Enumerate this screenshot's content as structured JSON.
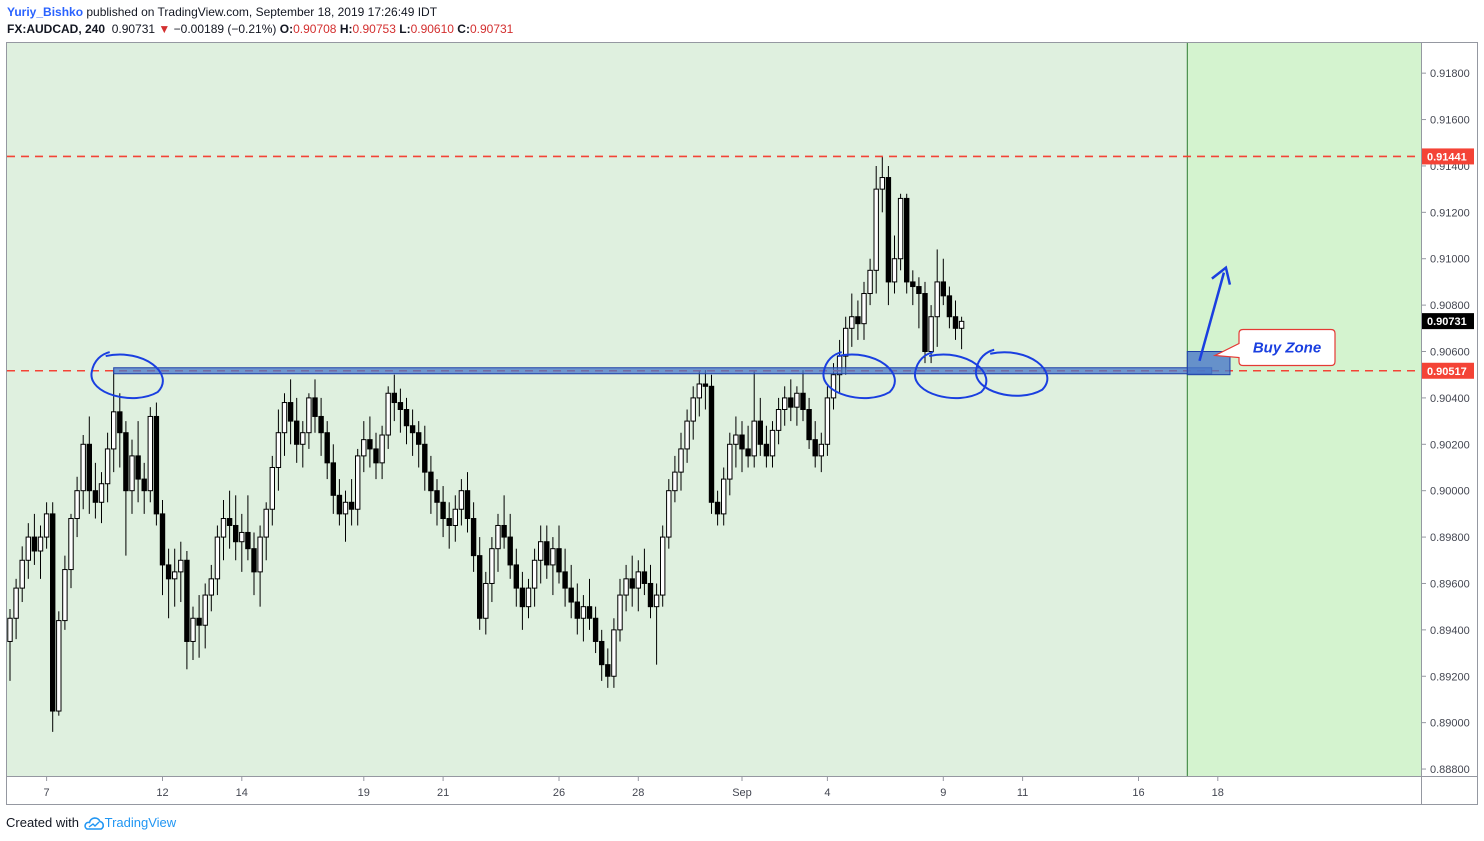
{
  "header": {
    "author": "Yuriy_Bishko",
    "published": " published on TradingView.com, September 18, 2019 17:26:49 IDT",
    "symbol": "FX:AUDCAD, 240",
    "last": "0.90731",
    "change_arrow": "▼",
    "change": "−0.00189 (−0.21%)",
    "o_label": "O:",
    "o_value": "0.90708",
    "h_label": "H:",
    "h_value": "0.90753",
    "l_label": "L:",
    "l_value": "0.90610",
    "c_label": "C:",
    "c_value": "0.90731"
  },
  "footer": {
    "created_with": "Created with",
    "brand": "TradingView",
    "logo_icon": "tradingview-cloud-icon"
  },
  "colors": {
    "background_zone": "#dff0df",
    "future_zone": "#d4f3cf",
    "resistance_line": "#f44336",
    "support_band": "#4a78c8",
    "annotation": "#1a3fe0",
    "candle": "#000000",
    "label_bg_red": "#f44336",
    "label_bg_black": "#000000"
  },
  "chart_data": {
    "type": "candlestick",
    "symbol": "FX:AUDCAD",
    "timeframe": "240",
    "ylim": [
      0.8877,
      0.9193
    ],
    "y_ticks": [
      "0.91800",
      "0.91600",
      "0.91400",
      "0.91200",
      "0.91000",
      "0.90800",
      "0.90600",
      "0.90400",
      "0.90200",
      "0.90000",
      "0.89800",
      "0.89600",
      "0.89400",
      "0.89200",
      "0.89000",
      "0.88800"
    ],
    "x_ticks": [
      "7",
      "12",
      "14",
      "19",
      "21",
      "26",
      "28",
      "Sep",
      "4",
      "9",
      "11",
      "16",
      "18"
    ],
    "x_tick_bar_index": [
      6,
      25,
      38,
      58,
      71,
      90,
      103,
      120,
      134,
      153,
      166,
      185,
      198
    ],
    "grid": false,
    "vertical_marker_bar_index": 193,
    "levels": [
      {
        "label": "0.91441",
        "value": 0.91441,
        "style": "dashed",
        "color": "#f44336"
      },
      {
        "label": "0.90517",
        "value": 0.90517,
        "style": "dashed",
        "color": "#f44336"
      }
    ],
    "current_price_label": "0.90731",
    "support_zone": {
      "value": 0.90517,
      "from_bar": 17,
      "to_bar": 197
    },
    "buy_zone_box": {
      "from_bar": 193,
      "to_bar": 200,
      "low": 0.905,
      "high": 0.906
    },
    "callout": "Buy Zone",
    "arrow": {
      "from_bar": 195,
      "from_value": 0.9056,
      "to_bar": 199,
      "to_value": 0.9094
    },
    "circled_touches": [
      {
        "bar": 17,
        "value": 0.9052
      },
      {
        "bar": 137,
        "value": 0.9052
      },
      {
        "bar": 152,
        "value": 0.9052
      },
      {
        "bar": 162,
        "value": 0.9053
      }
    ],
    "ohlc": [
      [
        0.8935,
        0.8949,
        0.8918,
        0.8945
      ],
      [
        0.8945,
        0.8962,
        0.8936,
        0.8958
      ],
      [
        0.8958,
        0.8976,
        0.8952,
        0.897
      ],
      [
        0.897,
        0.8986,
        0.8962,
        0.898
      ],
      [
        0.898,
        0.899,
        0.8968,
        0.8974
      ],
      [
        0.8974,
        0.8985,
        0.8962,
        0.898
      ],
      [
        0.898,
        0.8995,
        0.8975,
        0.899
      ],
      [
        0.899,
        0.8995,
        0.8896,
        0.8905
      ],
      [
        0.8905,
        0.8948,
        0.8903,
        0.8944
      ],
      [
        0.8944,
        0.8972,
        0.894,
        0.8966
      ],
      [
        0.8966,
        0.899,
        0.8958,
        0.8988
      ],
      [
        0.8988,
        0.9006,
        0.898,
        0.9
      ],
      [
        0.9,
        0.9024,
        0.8992,
        0.902
      ],
      [
        0.902,
        0.9032,
        0.899,
        0.9
      ],
      [
        0.9,
        0.9012,
        0.8988,
        0.8995
      ],
      [
        0.8995,
        0.9008,
        0.8986,
        0.9003
      ],
      [
        0.9003,
        0.9025,
        0.8995,
        0.9018
      ],
      [
        0.9018,
        0.9052,
        0.9008,
        0.9034
      ],
      [
        0.9034,
        0.9042,
        0.901,
        0.9025
      ],
      [
        0.9025,
        0.903,
        0.8972,
        0.9
      ],
      [
        0.9,
        0.9022,
        0.899,
        0.9015
      ],
      [
        0.9015,
        0.903,
        0.8995,
        0.9005
      ],
      [
        0.9005,
        0.9012,
        0.899,
        0.9
      ],
      [
        0.9,
        0.9036,
        0.8995,
        0.9032
      ],
      [
        0.9032,
        0.9038,
        0.8985,
        0.899
      ],
      [
        0.899,
        0.8996,
        0.8955,
        0.8968
      ],
      [
        0.8968,
        0.8975,
        0.8945,
        0.8962
      ],
      [
        0.8962,
        0.8975,
        0.895,
        0.8965
      ],
      [
        0.8965,
        0.8978,
        0.8952,
        0.897
      ],
      [
        0.897,
        0.8974,
        0.8923,
        0.8935
      ],
      [
        0.8935,
        0.895,
        0.8927,
        0.8945
      ],
      [
        0.8945,
        0.8955,
        0.8928,
        0.8942
      ],
      [
        0.8942,
        0.896,
        0.8932,
        0.8955
      ],
      [
        0.8955,
        0.8968,
        0.8948,
        0.8962
      ],
      [
        0.8962,
        0.8985,
        0.8955,
        0.898
      ],
      [
        0.898,
        0.8996,
        0.897,
        0.8988
      ],
      [
        0.8988,
        0.9,
        0.8975,
        0.8985
      ],
      [
        0.8985,
        0.8998,
        0.897,
        0.8978
      ],
      [
        0.8978,
        0.899,
        0.8965,
        0.8982
      ],
      [
        0.8982,
        0.8998,
        0.897,
        0.8975
      ],
      [
        0.8975,
        0.8982,
        0.8955,
        0.8965
      ],
      [
        0.8965,
        0.8985,
        0.895,
        0.898
      ],
      [
        0.898,
        0.8995,
        0.897,
        0.8992
      ],
      [
        0.8992,
        0.9015,
        0.8985,
        0.901
      ],
      [
        0.901,
        0.9035,
        0.9,
        0.9025
      ],
      [
        0.9025,
        0.9042,
        0.9015,
        0.9038
      ],
      [
        0.9038,
        0.9048,
        0.902,
        0.903
      ],
      [
        0.903,
        0.904,
        0.9012,
        0.902
      ],
      [
        0.902,
        0.903,
        0.901,
        0.9025
      ],
      [
        0.9025,
        0.9042,
        0.9018,
        0.904
      ],
      [
        0.904,
        0.9048,
        0.9025,
        0.9032
      ],
      [
        0.9032,
        0.904,
        0.9015,
        0.9025
      ],
      [
        0.9025,
        0.903,
        0.9005,
        0.9012
      ],
      [
        0.9012,
        0.902,
        0.899,
        0.8998
      ],
      [
        0.8998,
        0.9005,
        0.8985,
        0.899
      ],
      [
        0.899,
        0.9,
        0.8978,
        0.8995
      ],
      [
        0.8995,
        0.9005,
        0.8985,
        0.8992
      ],
      [
        0.8992,
        0.9018,
        0.8985,
        0.9015
      ],
      [
        0.9015,
        0.903,
        0.9008,
        0.9022
      ],
      [
        0.9022,
        0.9032,
        0.901,
        0.9018
      ],
      [
        0.9018,
        0.9025,
        0.9005,
        0.9012
      ],
      [
        0.9012,
        0.9028,
        0.9005,
        0.9024
      ],
      [
        0.9024,
        0.9045,
        0.9018,
        0.9042
      ],
      [
        0.9042,
        0.905,
        0.903,
        0.9038
      ],
      [
        0.9038,
        0.9044,
        0.9025,
        0.9035
      ],
      [
        0.9035,
        0.904,
        0.902,
        0.9028
      ],
      [
        0.9028,
        0.9035,
        0.9015,
        0.9025
      ],
      [
        0.9025,
        0.903,
        0.901,
        0.902
      ],
      [
        0.902,
        0.9028,
        0.9,
        0.9008
      ],
      [
        0.9008,
        0.9015,
        0.899,
        0.9
      ],
      [
        0.9,
        0.9005,
        0.8985,
        0.8995
      ],
      [
        0.8995,
        0.9002,
        0.898,
        0.8988
      ],
      [
        0.8988,
        0.8995,
        0.8975,
        0.8985
      ],
      [
        0.8985,
        0.8998,
        0.8978,
        0.8992
      ],
      [
        0.8992,
        0.9005,
        0.8985,
        0.9
      ],
      [
        0.9,
        0.9008,
        0.8982,
        0.8988
      ],
      [
        0.8988,
        0.8995,
        0.8965,
        0.8972
      ],
      [
        0.8972,
        0.898,
        0.894,
        0.8945
      ],
      [
        0.8945,
        0.8965,
        0.8938,
        0.896
      ],
      [
        0.896,
        0.898,
        0.8952,
        0.8975
      ],
      [
        0.8975,
        0.899,
        0.8965,
        0.8985
      ],
      [
        0.8985,
        0.8998,
        0.8975,
        0.898
      ],
      [
        0.898,
        0.899,
        0.8962,
        0.8968
      ],
      [
        0.8968,
        0.8975,
        0.895,
        0.8958
      ],
      [
        0.8958,
        0.8965,
        0.894,
        0.895
      ],
      [
        0.895,
        0.8962,
        0.8945,
        0.8958
      ],
      [
        0.8958,
        0.8975,
        0.895,
        0.897
      ],
      [
        0.897,
        0.8985,
        0.896,
        0.8978
      ],
      [
        0.8978,
        0.8985,
        0.8962,
        0.8968
      ],
      [
        0.8968,
        0.898,
        0.8955,
        0.8975
      ],
      [
        0.8975,
        0.8985,
        0.896,
        0.8965
      ],
      [
        0.8965,
        0.8975,
        0.895,
        0.8958
      ],
      [
        0.8958,
        0.8968,
        0.8945,
        0.8952
      ],
      [
        0.8952,
        0.896,
        0.8938,
        0.8945
      ],
      [
        0.8945,
        0.8955,
        0.8935,
        0.895
      ],
      [
        0.895,
        0.8962,
        0.894,
        0.8945
      ],
      [
        0.8945,
        0.895,
        0.893,
        0.8935
      ],
      [
        0.8935,
        0.894,
        0.8918,
        0.8925
      ],
      [
        0.8925,
        0.8932,
        0.8915,
        0.892
      ],
      [
        0.892,
        0.8945,
        0.8915,
        0.894
      ],
      [
        0.894,
        0.8962,
        0.8935,
        0.8955
      ],
      [
        0.8955,
        0.8968,
        0.8948,
        0.8962
      ],
      [
        0.8962,
        0.8972,
        0.895,
        0.8958
      ],
      [
        0.8958,
        0.897,
        0.8948,
        0.8965
      ],
      [
        0.8965,
        0.8975,
        0.8955,
        0.896
      ],
      [
        0.896,
        0.8968,
        0.8945,
        0.895
      ],
      [
        0.895,
        0.896,
        0.8925,
        0.8955
      ],
      [
        0.8955,
        0.8985,
        0.895,
        0.898
      ],
      [
        0.898,
        0.9005,
        0.8975,
        0.9
      ],
      [
        0.9,
        0.9015,
        0.8995,
        0.9008
      ],
      [
        0.9008,
        0.9025,
        0.9,
        0.9018
      ],
      [
        0.9018,
        0.9035,
        0.9012,
        0.903
      ],
      [
        0.903,
        0.9045,
        0.9022,
        0.904
      ],
      [
        0.904,
        0.9052,
        0.9032,
        0.9046
      ],
      [
        0.9046,
        0.9052,
        0.9035,
        0.9045
      ],
      [
        0.9045,
        0.905,
        0.899,
        0.8995
      ],
      [
        0.8995,
        0.9,
        0.8985,
        0.899
      ],
      [
        0.899,
        0.901,
        0.8985,
        0.9005
      ],
      [
        0.9005,
        0.9025,
        0.8998,
        0.902
      ],
      [
        0.902,
        0.9032,
        0.901,
        0.9024
      ],
      [
        0.9024,
        0.903,
        0.9008,
        0.9018
      ],
      [
        0.9018,
        0.9028,
        0.901,
        0.9015
      ],
      [
        0.9015,
        0.9052,
        0.901,
        0.903
      ],
      [
        0.903,
        0.904,
        0.9015,
        0.902
      ],
      [
        0.902,
        0.9028,
        0.901,
        0.9015
      ],
      [
        0.9015,
        0.903,
        0.901,
        0.9026
      ],
      [
        0.9026,
        0.904,
        0.902,
        0.9035
      ],
      [
        0.9035,
        0.9045,
        0.9028,
        0.904
      ],
      [
        0.904,
        0.9048,
        0.903,
        0.9036
      ],
      [
        0.9036,
        0.9045,
        0.9028,
        0.9042
      ],
      [
        0.9042,
        0.9052,
        0.903,
        0.9035
      ],
      [
        0.9035,
        0.904,
        0.9018,
        0.9022
      ],
      [
        0.9022,
        0.903,
        0.901,
        0.9015
      ],
      [
        0.9015,
        0.9025,
        0.9008,
        0.902
      ],
      [
        0.902,
        0.9045,
        0.9015,
        0.904
      ],
      [
        0.904,
        0.9055,
        0.9035,
        0.905
      ],
      [
        0.905,
        0.9065,
        0.9042,
        0.9058
      ],
      [
        0.9058,
        0.9075,
        0.905,
        0.907
      ],
      [
        0.907,
        0.9085,
        0.9062,
        0.9075
      ],
      [
        0.9075,
        0.9082,
        0.9065,
        0.9072
      ],
      [
        0.9072,
        0.909,
        0.9065,
        0.9085
      ],
      [
        0.9085,
        0.91,
        0.908,
        0.9095
      ],
      [
        0.9095,
        0.914,
        0.9085,
        0.913
      ],
      [
        0.913,
        0.9144,
        0.912,
        0.9135
      ],
      [
        0.9135,
        0.914,
        0.908,
        0.909
      ],
      [
        0.909,
        0.911,
        0.9085,
        0.91
      ],
      [
        0.91,
        0.9128,
        0.9095,
        0.9126
      ],
      [
        0.9126,
        0.9128,
        0.9085,
        0.909
      ],
      [
        0.909,
        0.9095,
        0.908,
        0.9088
      ],
      [
        0.9088,
        0.9092,
        0.907,
        0.9085
      ],
      [
        0.9085,
        0.909,
        0.9055,
        0.906
      ],
      [
        0.906,
        0.908,
        0.9055,
        0.9075
      ],
      [
        0.9075,
        0.9104,
        0.9062,
        0.909
      ],
      [
        0.909,
        0.91,
        0.908,
        0.9084
      ],
      [
        0.9084,
        0.9088,
        0.907,
        0.9075
      ],
      [
        0.9075,
        0.9082,
        0.9065,
        0.907
      ],
      [
        0.907,
        0.9075,
        0.9061,
        0.9073
      ]
    ]
  }
}
